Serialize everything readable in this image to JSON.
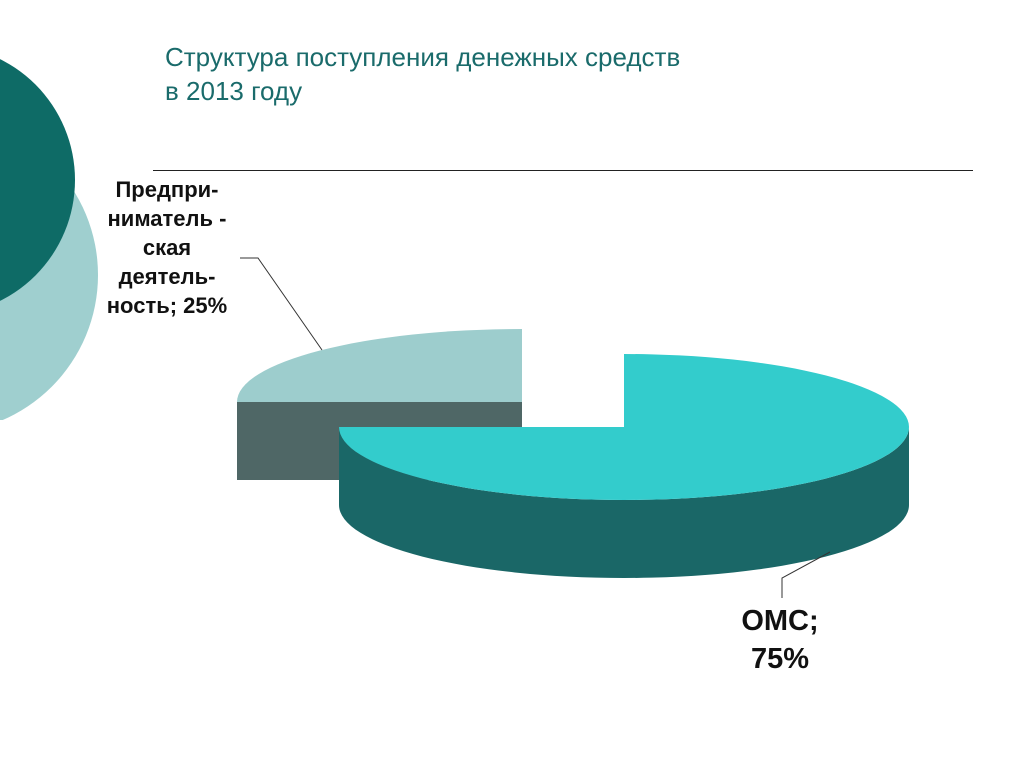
{
  "title": {
    "line1": "Структура поступления денежных средств",
    "line2": "в 2013 году"
  },
  "colors": {
    "deco_dark": "#0e6b66",
    "deco_light": "#9fcfcf",
    "slice_business_top": "#9dcdcd",
    "slice_business_side": "#4f6766",
    "slice_oms_top": "#33cccc",
    "slice_oms_side": "#1a6767",
    "title": "#1a6b6b"
  },
  "chart_data": {
    "type": "pie",
    "style": "3d-exploded",
    "slices": [
      {
        "name": "Предпринимательская деятельность",
        "value": 25,
        "label_lines": [
          "Предпри-",
          "ниматель -",
          "ская",
          "деятель-",
          "ность; 25%"
        ]
      },
      {
        "name": "ОМС",
        "value": 75,
        "label_lines": [
          "ОМС;",
          "75%"
        ]
      }
    ]
  }
}
